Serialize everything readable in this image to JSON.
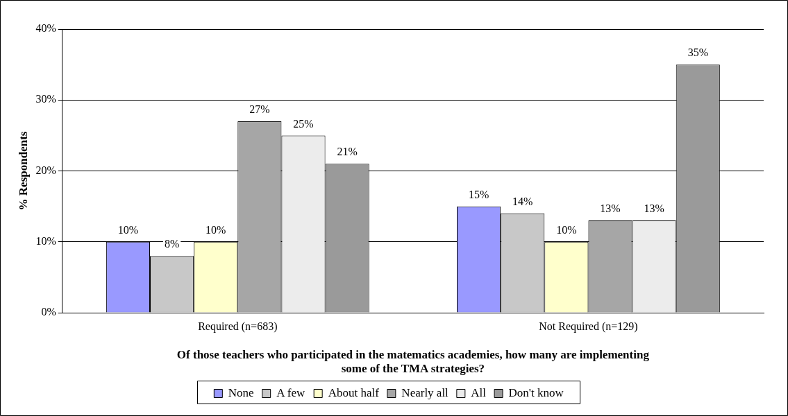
{
  "chart_data": {
    "type": "bar",
    "ylabel": "% Respondents",
    "xlabel": "Of those teachers who participated in the matematics academies, how many are implementing some of the TMA strategies?",
    "categories": [
      "Required (n=683)",
      "Not Required (n=129)"
    ],
    "series": [
      {
        "name": "None",
        "color": "#9999ff",
        "values": [
          10,
          15
        ],
        "value_labels": [
          "10%",
          "15%"
        ]
      },
      {
        "name": "A few",
        "color": "#c8c8c8",
        "values": [
          8,
          14
        ],
        "value_labels": [
          "8%",
          "14%"
        ]
      },
      {
        "name": "About half",
        "color": "#ffffcc",
        "values": [
          10,
          10
        ],
        "value_labels": [
          "10%",
          "10%"
        ]
      },
      {
        "name": "Nearly all",
        "color": "#a6a6a6",
        "values": [
          27,
          13
        ],
        "value_labels": [
          "27%",
          "13%"
        ]
      },
      {
        "name": "All",
        "color": "#ececec",
        "values": [
          25,
          13
        ],
        "value_labels": [
          "25%",
          "13%"
        ]
      },
      {
        "name": "Don't know",
        "color": "#9a9a9a",
        "values": [
          21,
          35
        ],
        "value_labels": [
          "21%",
          "35%"
        ]
      }
    ],
    "ylim": [
      0,
      40
    ],
    "yticks": [
      {
        "value": 0,
        "label": "0%"
      },
      {
        "value": 10,
        "label": "10%"
      },
      {
        "value": 20,
        "label": "20%"
      },
      {
        "value": 30,
        "label": "30%"
      },
      {
        "value": 40,
        "label": "40%"
      }
    ],
    "grid": "y",
    "legend": "bottom"
  }
}
